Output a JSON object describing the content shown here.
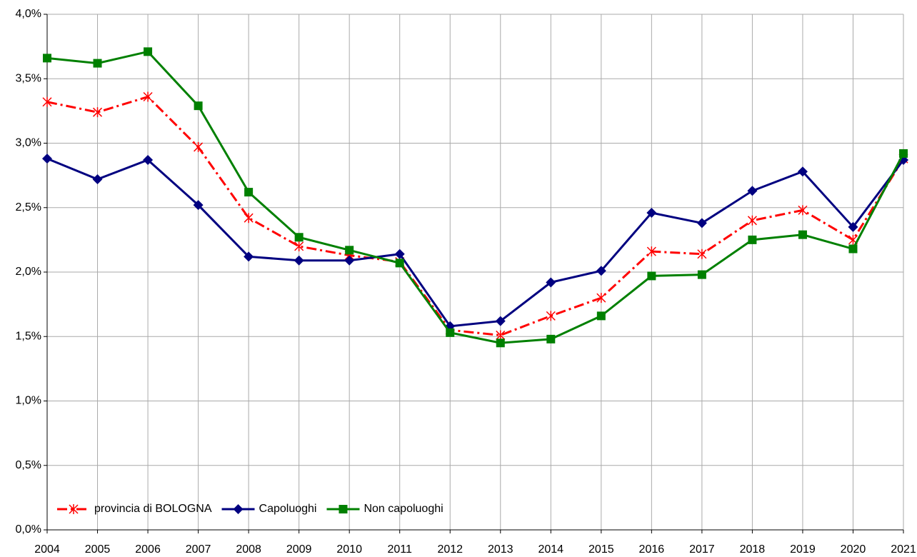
{
  "chart_data": {
    "type": "line",
    "categories": [
      "2004",
      "2005",
      "2006",
      "2007",
      "2008",
      "2009",
      "2010",
      "2011",
      "2012",
      "2013",
      "2014",
      "2015",
      "2016",
      "2017",
      "2018",
      "2019",
      "2020",
      "2021"
    ],
    "series": [
      {
        "name": "provincia di BOLOGNA",
        "color": "#ff0000",
        "marker": "asterisk",
        "dash": "dashdot",
        "values": [
          3.32,
          3.24,
          3.36,
          2.97,
          2.42,
          2.2,
          2.13,
          2.08,
          1.55,
          1.51,
          1.66,
          1.8,
          2.16,
          2.14,
          2.4,
          2.48,
          2.25,
          2.88
        ]
      },
      {
        "name": "Capoluoghi",
        "color": "#000080",
        "marker": "diamond",
        "dash": "solid",
        "values": [
          2.88,
          2.72,
          2.87,
          2.52,
          2.12,
          2.09,
          2.09,
          2.14,
          1.58,
          1.62,
          1.92,
          2.01,
          2.46,
          2.38,
          2.63,
          2.78,
          2.35,
          2.87
        ]
      },
      {
        "name": "Non capoluoghi",
        "color": "#008000",
        "marker": "square",
        "dash": "solid",
        "values": [
          3.66,
          3.62,
          3.71,
          3.29,
          2.62,
          2.27,
          2.17,
          2.07,
          1.53,
          1.45,
          1.48,
          1.66,
          1.97,
          1.98,
          2.25,
          2.29,
          2.18,
          2.92
        ]
      }
    ],
    "ylim": [
      0,
      4
    ],
    "yticks": [
      {
        "value": 0,
        "label": "0,0%"
      },
      {
        "value": 0.5,
        "label": "0,5%"
      },
      {
        "value": 1,
        "label": "1,0%"
      },
      {
        "value": 1.5,
        "label": "1,5%"
      },
      {
        "value": 2,
        "label": "2,0%"
      },
      {
        "value": 2.5,
        "label": "2,5%"
      },
      {
        "value": 3,
        "label": "3,0%"
      },
      {
        "value": 3.5,
        "label": "3,5%"
      },
      {
        "value": 4,
        "label": "4,0%"
      }
    ],
    "grid": true,
    "legend": "lower left"
  }
}
